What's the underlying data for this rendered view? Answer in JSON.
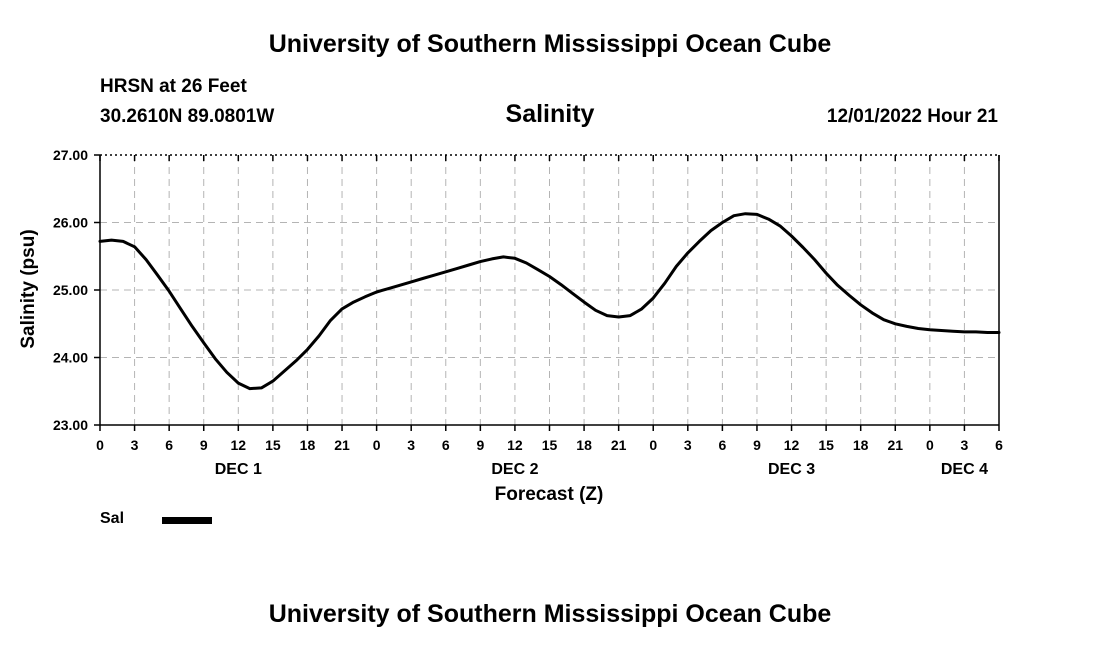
{
  "header": {
    "title": "University of Southern Mississippi Ocean Cube",
    "station": "HRSN at 26 Feet",
    "coords": "30.2610N  89.0801W",
    "subtitle": "Salinity",
    "datetime": "12/01/2022 Hour 21"
  },
  "footer": {
    "title": "University of Southern Mississippi Ocean Cube"
  },
  "legend": {
    "label": "Sal",
    "color": "#000000"
  },
  "chart_data": {
    "type": "line",
    "title": "Salinity",
    "xlabel": "Forecast (Z)",
    "ylabel": "Salinity (psu)",
    "ylim": [
      23.0,
      27.0
    ],
    "yticks": [
      "23.00",
      "24.00",
      "25.00",
      "26.00",
      "27.00"
    ],
    "xlim_hours": [
      0,
      78
    ],
    "xticks": [
      {
        "hour": 0,
        "label": "0"
      },
      {
        "hour": 3,
        "label": "3"
      },
      {
        "hour": 6,
        "label": "6"
      },
      {
        "hour": 9,
        "label": "9"
      },
      {
        "hour": 12,
        "label": "12"
      },
      {
        "hour": 15,
        "label": "15"
      },
      {
        "hour": 18,
        "label": "18"
      },
      {
        "hour": 21,
        "label": "21"
      },
      {
        "hour": 24,
        "label": "0"
      },
      {
        "hour": 27,
        "label": "3"
      },
      {
        "hour": 30,
        "label": "6"
      },
      {
        "hour": 33,
        "label": "9"
      },
      {
        "hour": 36,
        "label": "12"
      },
      {
        "hour": 39,
        "label": "15"
      },
      {
        "hour": 42,
        "label": "18"
      },
      {
        "hour": 45,
        "label": "21"
      },
      {
        "hour": 48,
        "label": "0"
      },
      {
        "hour": 51,
        "label": "3"
      },
      {
        "hour": 54,
        "label": "6"
      },
      {
        "hour": 57,
        "label": "9"
      },
      {
        "hour": 60,
        "label": "12"
      },
      {
        "hour": 63,
        "label": "15"
      },
      {
        "hour": 66,
        "label": "18"
      },
      {
        "hour": 69,
        "label": "21"
      },
      {
        "hour": 72,
        "label": "0"
      },
      {
        "hour": 75,
        "label": "3"
      },
      {
        "hour": 78,
        "label": "6"
      }
    ],
    "day_labels": [
      {
        "hour": 12,
        "label": "DEC 1"
      },
      {
        "hour": 36,
        "label": "DEC 2"
      },
      {
        "hour": 60,
        "label": "DEC 3"
      },
      {
        "hour": 75,
        "label": "DEC 4"
      }
    ],
    "grid": true,
    "legend_position": "bottom-left",
    "series": [
      {
        "name": "Sal",
        "x": [
          0,
          1,
          2,
          3,
          4,
          5,
          6,
          7,
          8,
          9,
          10,
          11,
          12,
          13,
          14,
          15,
          16,
          17,
          18,
          19,
          20,
          21,
          22,
          23,
          24,
          25,
          26,
          27,
          28,
          29,
          30,
          31,
          32,
          33,
          34,
          35,
          36,
          37,
          38,
          39,
          40,
          41,
          42,
          43,
          44,
          45,
          46,
          47,
          48,
          49,
          50,
          51,
          52,
          53,
          54,
          55,
          56,
          57,
          58,
          59,
          60,
          61,
          62,
          63,
          64,
          65,
          66,
          67,
          68,
          69,
          70,
          71,
          72,
          73,
          74,
          75,
          76,
          77,
          78
        ],
        "values": [
          25.72,
          25.74,
          25.72,
          25.64,
          25.45,
          25.22,
          24.98,
          24.72,
          24.46,
          24.22,
          23.98,
          23.78,
          23.62,
          23.54,
          23.55,
          23.65,
          23.8,
          23.95,
          24.12,
          24.32,
          24.55,
          24.72,
          24.82,
          24.9,
          24.97,
          25.02,
          25.07,
          25.12,
          25.17,
          25.22,
          25.27,
          25.32,
          25.37,
          25.42,
          25.46,
          25.49,
          25.47,
          25.4,
          25.3,
          25.2,
          25.08,
          24.95,
          24.82,
          24.7,
          24.62,
          24.6,
          24.62,
          24.72,
          24.88,
          25.1,
          25.35,
          25.55,
          25.72,
          25.88,
          26.0,
          26.1,
          26.13,
          26.12,
          26.05,
          25.95,
          25.8,
          25.63,
          25.45,
          25.25,
          25.07,
          24.92,
          24.78,
          24.66,
          24.56,
          24.5,
          24.46,
          24.43,
          24.41,
          24.4,
          24.39,
          24.38,
          24.38,
          24.37,
          24.37
        ]
      }
    ]
  }
}
